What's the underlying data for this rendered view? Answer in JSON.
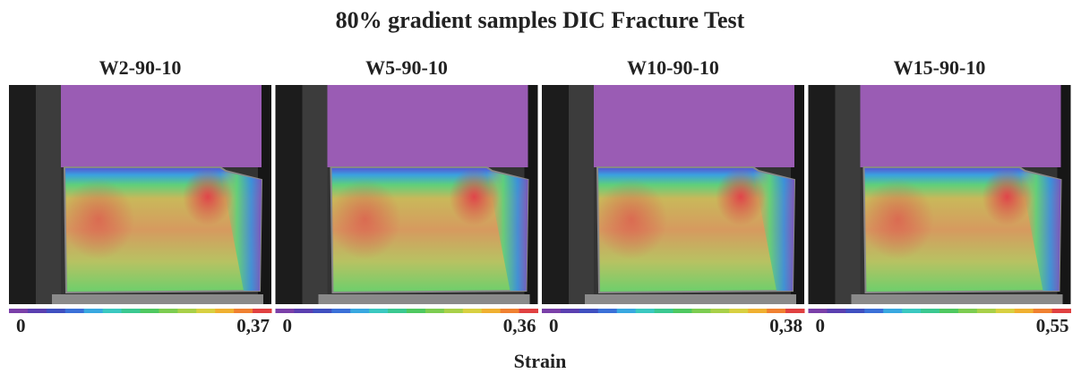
{
  "title": "80% gradient samples DIC Fracture Test",
  "panels": [
    {
      "title": "W2-90-10",
      "scale_min": "0",
      "scale_max": "0,37"
    },
    {
      "title": "W5-90-10",
      "scale_min": "0",
      "scale_max": "0,36"
    },
    {
      "title": "W10-90-10",
      "scale_min": "0",
      "scale_max": "0,38"
    },
    {
      "title": "W15-90-10",
      "scale_min": "0",
      "scale_max": "0,55"
    }
  ],
  "scale_label": "Strain"
}
